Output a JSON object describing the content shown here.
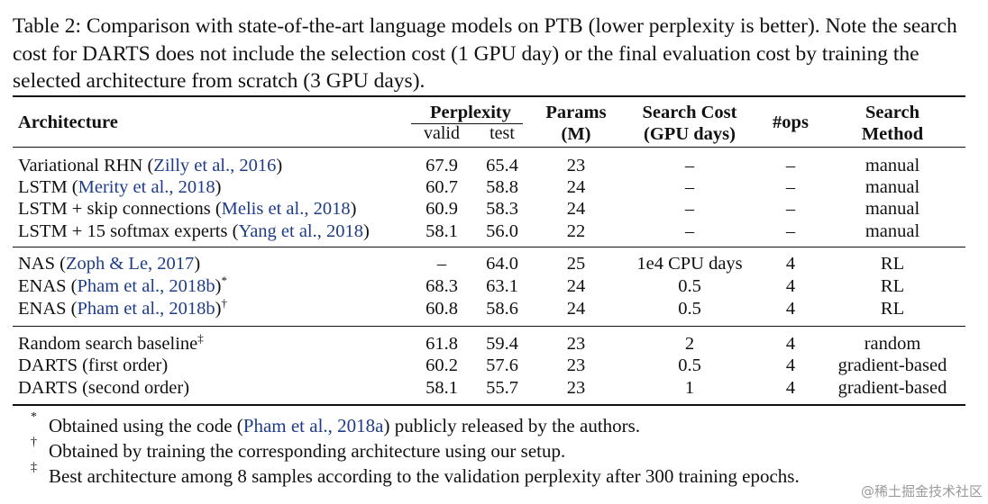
{
  "caption": "Table 2: Comparison with state-of-the-art language models on PTB (lower perplexity is better). Note the search cost for DARTS does not include the selection cost (1 GPU day) or the final evaluation cost by training the selected architecture from scratch (3 GPU days).",
  "headers": {
    "architecture": "Architecture",
    "perplexity": "Perplexity",
    "valid": "valid",
    "test": "test",
    "params_1": "Params",
    "params_2": "(M)",
    "cost_1": "Search Cost",
    "cost_2": "(GPU days)",
    "ops": "#ops",
    "method_1": "Search",
    "method_2": "Method"
  },
  "rows": [
    {
      "name": "Variational RHN (",
      "cite": "Zilly et al., 2016",
      "close": ")",
      "sup": "",
      "valid": "67.9",
      "test": "65.4",
      "params": "23",
      "cost": "–",
      "ops": "–",
      "method": "manual"
    },
    {
      "name": "LSTM (",
      "cite": "Merity et al., 2018",
      "close": ")",
      "sup": "",
      "valid": "60.7",
      "test": "58.8",
      "params": "24",
      "cost": "–",
      "ops": "–",
      "method": "manual"
    },
    {
      "name": "LSTM + skip connections (",
      "cite": "Melis et al., 2018",
      "close": ")",
      "sup": "",
      "valid": "60.9",
      "test": "58.3",
      "params": "24",
      "cost": "–",
      "ops": "–",
      "method": "manual"
    },
    {
      "name": "LSTM + 15 softmax experts (",
      "cite": "Yang et al., 2018",
      "close": ")",
      "sup": "",
      "valid": "58.1",
      "test": "56.0",
      "params": "22",
      "cost": "–",
      "ops": "–",
      "method": "manual"
    },
    {
      "name": "NAS (",
      "cite": "Zoph & Le, 2017",
      "close": ")",
      "sup": "",
      "valid": "–",
      "test": "64.0",
      "params": "25",
      "cost": "1e4 CPU days",
      "ops": "4",
      "method": "RL"
    },
    {
      "name": "ENAS (",
      "cite": "Pham et al., 2018b",
      "close": ")",
      "sup": "*",
      "valid": "68.3",
      "test": "63.1",
      "params": "24",
      "cost": "0.5",
      "ops": "4",
      "method": "RL"
    },
    {
      "name": "ENAS (",
      "cite": "Pham et al., 2018b",
      "close": ")",
      "sup": "†",
      "valid": "60.8",
      "test": "58.6",
      "params": "24",
      "cost": "0.5",
      "ops": "4",
      "method": "RL"
    },
    {
      "name": "Random search baseline",
      "cite": "",
      "close": "",
      "sup": "‡",
      "valid": "61.8",
      "test": "59.4",
      "params": "23",
      "cost": "2",
      "ops": "4",
      "method": "random"
    },
    {
      "name": "DARTS (first order)",
      "cite": "",
      "close": "",
      "sup": "",
      "valid": "60.2",
      "test": "57.6",
      "params": "23",
      "cost": "0.5",
      "ops": "4",
      "method": "gradient-based"
    },
    {
      "name": "DARTS (second order)",
      "cite": "",
      "close": "",
      "sup": "",
      "valid": "58.1",
      "test": "55.7",
      "params": "23",
      "cost": "1",
      "ops": "4",
      "method": "gradient-based"
    }
  ],
  "footnotes": [
    {
      "mark": "*",
      "pre": "Obtained using the code (",
      "cite": "Pham et al., 2018a",
      "post": ") publicly released by the authors."
    },
    {
      "mark": "†",
      "pre": "Obtained by training the corresponding architecture using our setup.",
      "cite": "",
      "post": ""
    },
    {
      "mark": "‡",
      "pre": "Best architecture among 8 samples according to the validation perplexity after 300 training epochs.",
      "cite": "",
      "post": ""
    }
  ],
  "watermark": "@稀土掘金技术社区"
}
